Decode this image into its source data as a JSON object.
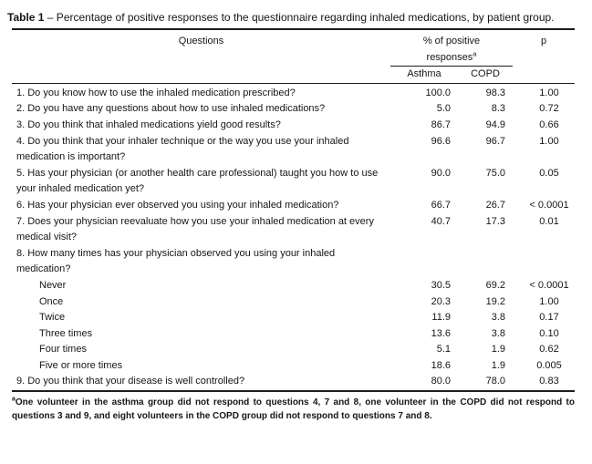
{
  "title": {
    "label": "Table 1",
    "rest": " – Percentage of positive responses to the questionnaire regarding inhaled medications, by patient group."
  },
  "table": {
    "columns": {
      "questions": "Questions",
      "group_header_line1": "% of positive",
      "group_header_line2": "responses",
      "group_header_superscript": "a",
      "subcolumns": [
        "Asthma",
        "COPD"
      ],
      "p": "p"
    },
    "rows": [
      {
        "question": "1. Do you know how to use the inhaled medication prescribed?",
        "indent": false,
        "asthma": "100.0",
        "copd": "98.3",
        "p": "1.00"
      },
      {
        "question": "2. Do you have any questions about how to use inhaled medications?",
        "indent": false,
        "asthma": "5.0",
        "copd": "8.3",
        "p": "0.72"
      },
      {
        "question": "3. Do you think that inhaled medications yield good results?",
        "indent": false,
        "asthma": "86.7",
        "copd": "94.9",
        "p": "0.66"
      },
      {
        "question": "4. Do you think that your inhaler technique or the way you use your inhaled medication is important?",
        "indent": false,
        "asthma": "96.6",
        "copd": "96.7",
        "p": "1.00"
      },
      {
        "question": "5. Has your physician (or another health care professional) taught you how to use your inhaled medication yet?",
        "indent": false,
        "asthma": "90.0",
        "copd": "75.0",
        "p": "0.05"
      },
      {
        "question": "6. Has your physician ever observed you using your inhaled medication?",
        "indent": false,
        "asthma": "66.7",
        "copd": "26.7",
        "p": "< 0.0001"
      },
      {
        "question": "7. Does your physician reevaluate how you use your inhaled medication at every medical visit?",
        "indent": false,
        "asthma": "40.7",
        "copd": "17.3",
        "p": "0.01"
      },
      {
        "question": "8. How many times has your physician observed you using your inhaled medication?",
        "indent": false,
        "asthma": "",
        "copd": "",
        "p": ""
      },
      {
        "question": "Never",
        "indent": true,
        "asthma": "30.5",
        "copd": "69.2",
        "p": "< 0.0001"
      },
      {
        "question": "Once",
        "indent": true,
        "asthma": "20.3",
        "copd": "19.2",
        "p": "1.00"
      },
      {
        "question": "Twice",
        "indent": true,
        "asthma": "11.9",
        "copd": "3.8",
        "p": "0.17"
      },
      {
        "question": "Three times",
        "indent": true,
        "asthma": "13.6",
        "copd": "3.8",
        "p": "0.10"
      },
      {
        "question": "Four times",
        "indent": true,
        "asthma": "5.1",
        "copd": "1.9",
        "p": "0.62"
      },
      {
        "question": "Five or more times",
        "indent": true,
        "asthma": "18.6",
        "copd": "1.9",
        "p": "0.005"
      },
      {
        "question": "9. Do you think that your disease is well controlled?",
        "indent": false,
        "asthma": "80.0",
        "copd": "78.0",
        "p": "0.83"
      }
    ]
  },
  "footnote": {
    "superscript": "a",
    "text": "One volunteer in the asthma group did not respond to questions 4, 7 and 8, one volunteer in the COPD did not respond to questions 3 and 9, and eight volunteers in the COPD group did not respond to questions 7 and 8."
  }
}
